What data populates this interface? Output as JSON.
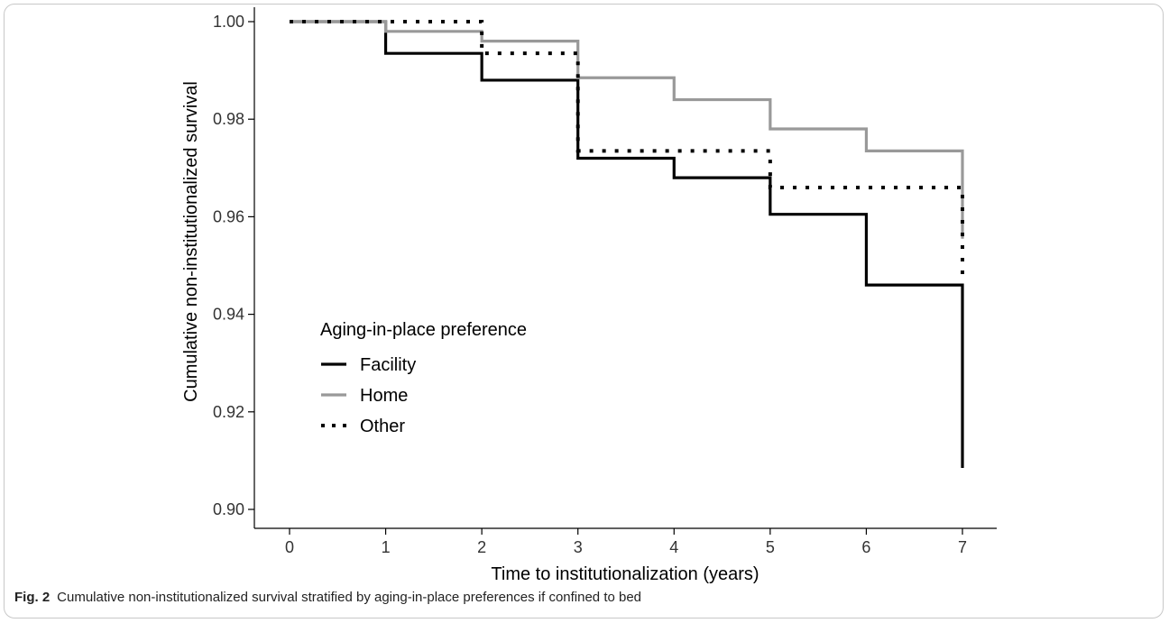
{
  "caption": {
    "label": "Fig. 2",
    "text": "Cumulative non-institutionalized survival stratified by aging-in-place preferences if confined to bed"
  },
  "chart_data": {
    "type": "line",
    "step": true,
    "xlabel": "Time to institutionalization (years)",
    "ylabel": "Cumulative non-institutionalized survival",
    "xlim": [
      0,
      7
    ],
    "ylim": [
      0.9,
      1.0
    ],
    "xticks": [
      "0",
      "1",
      "2",
      "3",
      "4",
      "5",
      "6",
      "7"
    ],
    "yticks": [
      "0.90",
      "0.92",
      "0.94",
      "0.96",
      "0.98",
      "1.00"
    ],
    "grid": false,
    "legend": {
      "title": "Aging-in-place preference",
      "placement": "center-left"
    },
    "series": [
      {
        "name": "Facility",
        "color": "#000000",
        "style": "solid",
        "x": [
          0,
          1,
          2,
          3,
          4,
          5,
          6,
          7
        ],
        "y": [
          1.0,
          0.9935,
          0.988,
          0.972,
          0.968,
          0.9605,
          0.946,
          0.9085
        ]
      },
      {
        "name": "Home",
        "color": "#999999",
        "style": "solid",
        "x": [
          0,
          1,
          2,
          3,
          4,
          5,
          6,
          7
        ],
        "y": [
          1.0,
          0.998,
          0.996,
          0.9885,
          0.984,
          0.978,
          0.9735,
          0.9555
        ]
      },
      {
        "name": "Other",
        "color": "#000000",
        "style": "dotted",
        "x": [
          0,
          2,
          3,
          5,
          7
        ],
        "y": [
          1.0,
          0.9935,
          0.9735,
          0.966,
          0.947
        ]
      }
    ]
  }
}
